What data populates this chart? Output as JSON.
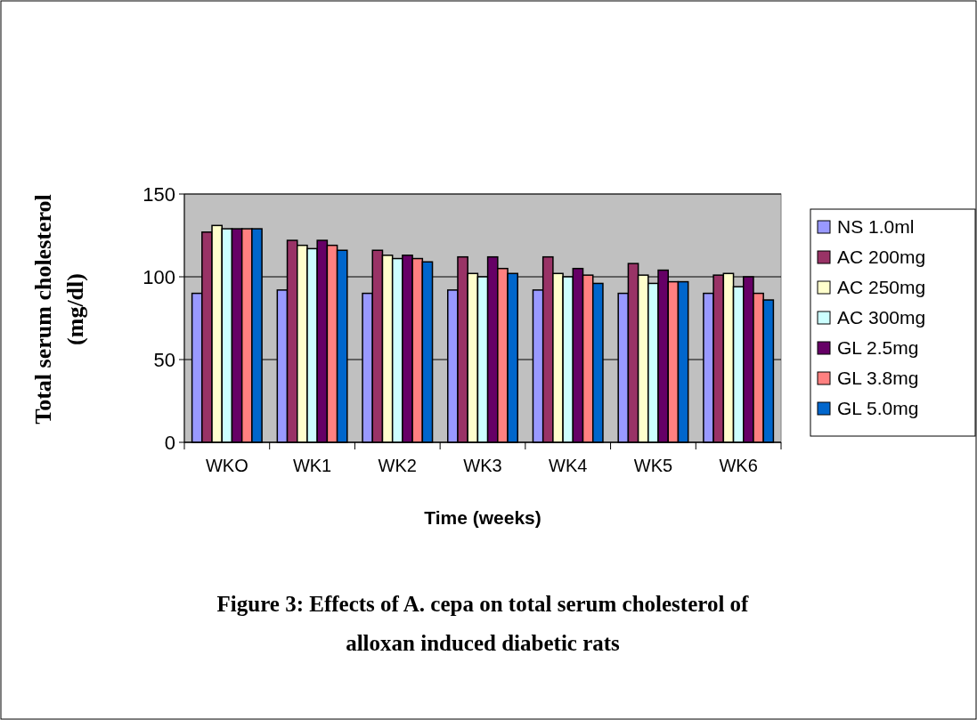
{
  "chart_data": {
    "type": "bar",
    "title": "Figure 3: Effects of A. cepa on total serum cholesterol of alloxan induced diabetic rats",
    "xlabel": "Time (weeks)",
    "ylabel": "Total serum cholesterol (mg/dl)",
    "categories": [
      "WKO",
      "WK1",
      "WK2",
      "WK3",
      "WK4",
      "WK5",
      "WK6"
    ],
    "series": [
      {
        "name": "NS 1.0ml",
        "color": "#9999ff",
        "values": [
          90,
          92,
          90,
          92,
          92,
          90,
          90
        ]
      },
      {
        "name": "AC 200mg",
        "color": "#993366",
        "values": [
          127,
          122,
          116,
          112,
          112,
          108,
          101
        ]
      },
      {
        "name": "AC 250mg",
        "color": "#ffffcc",
        "values": [
          131,
          119,
          113,
          102,
          102,
          101,
          102
        ]
      },
      {
        "name": "AC 300mg",
        "color": "#ccffff",
        "values": [
          129,
          117,
          111,
          100,
          100,
          96,
          94
        ]
      },
      {
        "name": "GL 2.5mg",
        "color": "#660066",
        "values": [
          129,
          122,
          113,
          112,
          105,
          104,
          100
        ]
      },
      {
        "name": "GL 3.8mg",
        "color": "#ff8080",
        "values": [
          129,
          119,
          111,
          105,
          101,
          97,
          90
        ]
      },
      {
        "name": "GL 5.0mg",
        "color": "#0066cc",
        "values": [
          129,
          116,
          109,
          102,
          96,
          97,
          86
        ]
      }
    ],
    "ylim": [
      0,
      150
    ],
    "yticks": [
      0,
      50,
      100,
      150
    ],
    "grid": "y",
    "legend": "right"
  }
}
